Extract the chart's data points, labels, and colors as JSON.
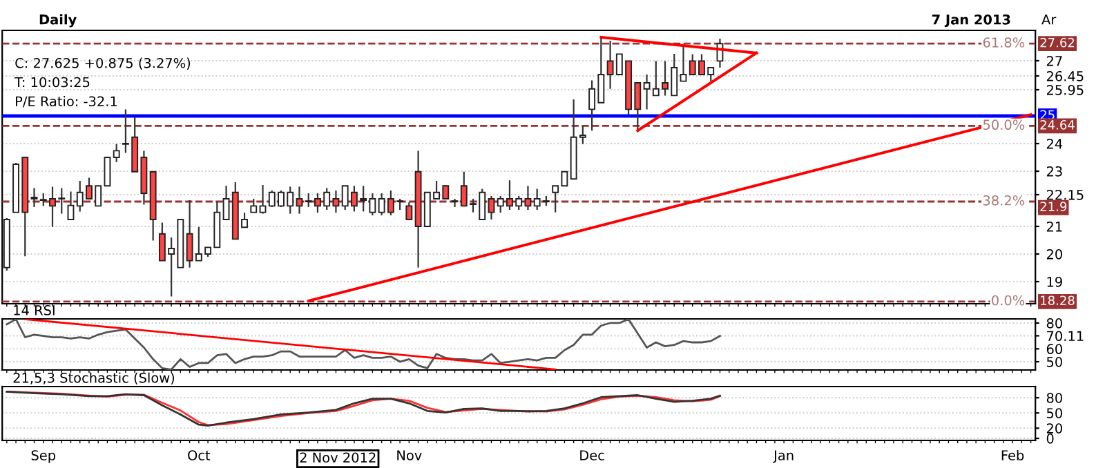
{
  "chart_data": [
    {
      "type": "candlestick",
      "title": "Daily",
      "subtitle": "7 Jan 2013",
      "ylabel": "Ar",
      "annotations": [
        "C: 27.625 +0.875 (3.27%)",
        "T: 10:03:25",
        "P/E Ratio: -32.1",
        {
          "text": "61.8%",
          "y": 27.62
        },
        {
          "text": "50.0%",
          "y": 24.64
        },
        {
          "text": "38.2%",
          "y": 21.9
        },
        {
          "text": "0.0%",
          "y": 18.28
        }
      ],
      "ohlc": [
        [
          19.51,
          21.3,
          19.4,
          21.25
        ],
        [
          21.51,
          23.3,
          21.5,
          23.25
        ],
        [
          23.5,
          23.5,
          19.92,
          21.51
        ],
        [
          22.0,
          22.39,
          21.7,
          22.05
        ],
        [
          21.95,
          22.2,
          21.74,
          21.95
        ],
        [
          22.0,
          22.44,
          20.98,
          21.74
        ],
        [
          22.0,
          22.39,
          21.46,
          22.0
        ],
        [
          21.25,
          22.26,
          21.25,
          21.76
        ],
        [
          21.74,
          22.65,
          21.54,
          22.23
        ],
        [
          22.47,
          22.76,
          22.0,
          22.0
        ],
        [
          21.74,
          22.47,
          21.74,
          22.47
        ],
        [
          22.47,
          23.5,
          22.47,
          23.5
        ],
        [
          23.5,
          23.98,
          23.33,
          23.74
        ],
        [
          23.98,
          25.24,
          23.66,
          24.0
        ],
        [
          24.23,
          24.96,
          22.98,
          22.98
        ],
        [
          23.5,
          23.74,
          21.79,
          22.2
        ],
        [
          22.98,
          22.98,
          20.49,
          21.25
        ],
        [
          20.73,
          21.14,
          19.76,
          19.76
        ],
        [
          20.0,
          20.6,
          18.46,
          20.2
        ],
        [
          19.51,
          21.25,
          19.51,
          21.25
        ],
        [
          20.73,
          21.95,
          19.51,
          19.76
        ],
        [
          19.76,
          20.98,
          19.76,
          20.0
        ],
        [
          20.0,
          20.24,
          19.9,
          20.24
        ],
        [
          20.24,
          21.9,
          20.24,
          21.51
        ],
        [
          21.25,
          22.47,
          21.25,
          22.0
        ],
        [
          22.23,
          22.6,
          20.54,
          20.54
        ],
        [
          20.97,
          21.5,
          20.97,
          21.25
        ],
        [
          21.51,
          22.0,
          21.5,
          21.74
        ],
        [
          21.51,
          22.5,
          21.46,
          21.74
        ],
        [
          21.74,
          22.3,
          21.7,
          22.23
        ],
        [
          21.74,
          22.3,
          21.7,
          22.23
        ],
        [
          21.74,
          22.44,
          21.46,
          22.23
        ],
        [
          22.0,
          22.44,
          21.46,
          21.74
        ],
        [
          21.9,
          22.2,
          21.7,
          21.92
        ],
        [
          22.0,
          22.2,
          21.5,
          21.74
        ],
        [
          21.74,
          22.39,
          21.6,
          22.23
        ],
        [
          22.0,
          22.3,
          21.5,
          21.74
        ],
        [
          21.74,
          22.47,
          21.6,
          22.47
        ],
        [
          22.23,
          22.47,
          21.54,
          21.74
        ],
        [
          21.95,
          22.47,
          21.54,
          22.0
        ],
        [
          21.51,
          22.2,
          21.4,
          22.0
        ],
        [
          21.51,
          22.2,
          21.4,
          22.0
        ],
        [
          22.0,
          22.3,
          21.4,
          21.51
        ],
        [
          21.9,
          22.0,
          21.6,
          21.92
        ],
        [
          21.74,
          21.87,
          21.25,
          21.25
        ],
        [
          22.98,
          23.74,
          19.51,
          21.0
        ],
        [
          21.0,
          22.23,
          21.0,
          22.23
        ],
        [
          22.0,
          22.65,
          22.0,
          22.23
        ],
        [
          22.47,
          22.5,
          22.0,
          22.0
        ],
        [
          21.9,
          22.0,
          21.7,
          21.92
        ],
        [
          22.47,
          22.98,
          21.74,
          21.74
        ],
        [
          21.8,
          22.0,
          21.51,
          21.8
        ],
        [
          21.25,
          22.36,
          21.25,
          22.23
        ],
        [
          22.0,
          22.1,
          21.25,
          21.51
        ],
        [
          21.74,
          22.1,
          21.5,
          22.0
        ],
        [
          22.0,
          22.67,
          21.6,
          21.74
        ],
        [
          21.74,
          22.1,
          21.6,
          22.0
        ],
        [
          22.0,
          22.47,
          21.6,
          21.74
        ],
        [
          21.74,
          22.36,
          21.6,
          22.0
        ],
        [
          21.9,
          22.1,
          21.74,
          21.9
        ],
        [
          22.23,
          22.47,
          21.51,
          22.47
        ],
        [
          22.47,
          22.98,
          22.47,
          22.98
        ],
        [
          22.72,
          25.6,
          22.72,
          24.23
        ],
        [
          24.23,
          24.63,
          23.98,
          24.3
        ],
        [
          25.24,
          26.29,
          24.47,
          25.98
        ],
        [
          25.48,
          27.85,
          25.48,
          26.5
        ],
        [
          26.99,
          27.72,
          25.98,
          26.5
        ],
        [
          26.5,
          27.24,
          26.5,
          27.24
        ],
        [
          26.99,
          26.99,
          25.04,
          25.24
        ],
        [
          26.2,
          26.2,
          24.47,
          25.24
        ],
        [
          25.98,
          26.5,
          25.24,
          26.2
        ],
        [
          25.74,
          26.99,
          25.74,
          25.98
        ],
        [
          26.2,
          26.99,
          25.74,
          25.98
        ],
        [
          25.74,
          27.25,
          25.74,
          26.75
        ],
        [
          26.26,
          27.5,
          26.26,
          26.5
        ],
        [
          26.99,
          27.24,
          26.5,
          26.5
        ],
        [
          26.99,
          27.24,
          26.5,
          26.5
        ],
        [
          26.5,
          26.75,
          26.26,
          26.75
        ],
        [
          26.99,
          27.8,
          26.75,
          27.62
        ],
        null,
        null,
        null,
        null,
        null,
        null,
        null,
        null,
        null,
        null,
        null,
        null,
        null,
        null,
        null,
        null,
        null,
        null,
        null,
        null,
        null,
        null,
        null,
        null,
        null,
        null,
        null,
        null,
        null,
        null,
        null,
        null,
        null,
        null
      ],
      "series": [
        {
          "type": "line",
          "color": "#ff0000",
          "values": [
            null,
            null,
            null,
            null,
            null,
            null,
            null,
            null,
            null,
            null,
            null,
            null,
            null,
            null,
            null,
            null,
            null,
            null,
            null,
            null,
            null,
            null,
            null,
            null,
            null,
            null,
            null,
            null,
            null,
            null,
            null,
            null,
            null,
            null,
            null,
            null,
            null,
            null,
            null,
            null,
            null,
            null,
            null,
            null,
            null,
            null,
            null,
            null,
            null,
            null,
            null,
            null,
            null,
            null,
            null,
            null,
            null,
            null,
            null,
            null,
            null,
            null,
            null,
            null,
            null,
            27.85,
            null,
            null,
            null,
            null,
            null,
            null,
            null,
            null,
            null,
            null,
            null,
            null,
            null,
            null,
            null,
            null,
            27.28,
            null,
            null,
            null,
            null,
            null,
            null,
            null,
            null,
            null,
            null,
            null,
            null,
            null,
            null,
            null,
            null,
            null,
            null,
            null,
            null,
            null,
            null,
            null,
            null,
            null,
            null,
            null,
            null,
            null,
            null
          ]
        },
        {
          "type": "line",
          "color": "#ff0000",
          "values": [
            null,
            null,
            null,
            null,
            null,
            null,
            null,
            null,
            null,
            null,
            null,
            null,
            null,
            null,
            null,
            null,
            null,
            null,
            null,
            null,
            null,
            null,
            null,
            null,
            null,
            null,
            null,
            null,
            null,
            null,
            null,
            null,
            null,
            null,
            null,
            null,
            null,
            null,
            null,
            null,
            null,
            null,
            null,
            null,
            null,
            null,
            null,
            null,
            null,
            null,
            null,
            null,
            null,
            null,
            null,
            null,
            null,
            null,
            null,
            null,
            null,
            null,
            null,
            null,
            null,
            null,
            null,
            null,
            null,
            24.47,
            null,
            null,
            null,
            null,
            null,
            null,
            null,
            null,
            null,
            null,
            null,
            null,
            27.28,
            null,
            null,
            null,
            null,
            null,
            null,
            null,
            null,
            null,
            null,
            null,
            null,
            null,
            null,
            null,
            null,
            null,
            null,
            null,
            null,
            null,
            null,
            null,
            null,
            null,
            null,
            null,
            null,
            null,
            null
          ]
        },
        {
          "type": "line",
          "color": "#ff0000",
          "values": [
            null,
            null,
            null,
            null,
            null,
            null,
            null,
            null,
            null,
            null,
            null,
            null,
            null,
            null,
            null,
            null,
            null,
            null,
            null,
            null,
            null,
            null,
            null,
            null,
            null,
            null,
            null,
            null,
            null,
            null,
            null,
            null,
            null,
            18.3,
            null,
            null,
            null,
            null,
            null,
            null,
            null,
            null,
            null,
            null,
            null,
            null,
            null,
            null,
            null,
            null,
            null,
            null,
            null,
            null,
            null,
            null,
            null,
            null,
            null,
            null,
            null,
            null,
            null,
            null,
            null,
            null,
            null,
            null,
            null,
            null,
            null,
            null,
            null,
            null,
            null,
            null,
            null,
            null,
            null,
            null,
            null,
            null,
            null,
            null,
            null,
            null,
            null,
            null,
            null,
            null,
            null,
            null,
            null,
            null,
            null,
            null,
            null,
            null,
            null,
            null,
            null,
            null,
            null,
            null,
            null,
            null,
            null,
            null,
            null,
            null,
            null,
            null,
            25.05
          ]
        }
      ],
      "ref_lines": [
        {
          "axis": "y",
          "value": 27.62,
          "label": "27.62",
          "color": "#993333",
          "line_style": "dashed"
        },
        {
          "axis": "y",
          "value": 25,
          "label": "25",
          "color": "#0000ff",
          "line_style": "solid"
        },
        {
          "axis": "y",
          "value": 24.64,
          "label": "24.64",
          "color": "#993333",
          "line_style": "dashed"
        },
        {
          "axis": "y",
          "value": 21.9,
          "label": "21.9",
          "color": "#993333",
          "line_style": "dashed"
        },
        {
          "axis": "y",
          "value": 18.28,
          "label": "18.28",
          "color": "#993333",
          "line_style": "dashed"
        }
      ],
      "ylim": [
        18.2,
        28.1
      ],
      "yticks": [
        19,
        20,
        21,
        22.15,
        23,
        24,
        25.95,
        26.45,
        27
      ],
      "grid": "y",
      "tick_labels": "y"
    },
    {
      "type": "line",
      "title": "14 RSI",
      "series": [
        {
          "color": "#555555",
          "values": [
            79,
            83,
            69,
            71,
            70,
            69,
            69,
            68,
            69,
            68,
            71,
            73,
            74,
            75,
            68,
            61,
            52,
            45,
            44,
            52,
            46,
            49,
            49,
            55,
            56,
            49,
            52,
            54,
            54,
            55,
            58,
            58,
            54,
            54,
            54,
            54,
            54,
            59,
            53,
            55,
            53,
            53,
            54,
            50,
            52,
            47,
            45,
            56,
            53,
            52,
            52,
            51,
            51,
            56,
            49,
            50,
            51,
            52,
            51,
            53,
            53,
            59,
            63,
            71,
            71,
            78,
            80,
            80,
            83,
            72,
            61,
            65,
            62,
            63,
            66,
            65,
            65,
            66,
            70,
            null,
            null,
            null,
            null,
            null,
            null,
            null,
            null,
            null,
            null,
            null,
            null,
            null,
            null,
            null,
            null,
            null,
            null,
            null,
            null,
            null,
            null,
            null,
            null,
            null,
            null,
            null,
            null,
            null,
            null,
            null,
            null,
            null,
            null
          ]
        },
        {
          "color": "#ff0000",
          "values": [
            null,
            null,
            83,
            null,
            null,
            null,
            null,
            null,
            null,
            null,
            null,
            null,
            null,
            null,
            null,
            null,
            null,
            null,
            null,
            null,
            null,
            null,
            null,
            null,
            null,
            null,
            null,
            null,
            null,
            null,
            null,
            null,
            null,
            null,
            null,
            null,
            null,
            null,
            null,
            null,
            null,
            null,
            null,
            null,
            null,
            null,
            null,
            null,
            null,
            null,
            null,
            null,
            null,
            null,
            null,
            null,
            null,
            null,
            null,
            null,
            44,
            null,
            null,
            null,
            null,
            null,
            null,
            null,
            null,
            null,
            null,
            null,
            null,
            null,
            null,
            null,
            null,
            null,
            null,
            null,
            null,
            null,
            null,
            null,
            null,
            null,
            null,
            null,
            null,
            null,
            null,
            null,
            null,
            null,
            null,
            null,
            null,
            null,
            null,
            null,
            null,
            null,
            null,
            null,
            null,
            null,
            null,
            null,
            null,
            null,
            null,
            null,
            null
          ]
        }
      ],
      "ylim": [
        43.6,
        83.2
      ],
      "yticks": [
        50,
        60,
        70.11,
        80
      ],
      "grid": "y",
      "tick_labels": "y"
    },
    {
      "type": "line",
      "title": "21,5,3 Stochastic (Slow)",
      "annotations": [
        "2 Nov 2012"
      ],
      "categories": [
        null,
        null,
        null,
        null,
        "Sep",
        null,
        null,
        null,
        null,
        null,
        null,
        null,
        null,
        null,
        null,
        null,
        null,
        null,
        null,
        null,
        null,
        "Oct",
        null,
        null,
        null,
        null,
        null,
        null,
        null,
        null,
        null,
        null,
        null,
        null,
        null,
        null,
        null,
        null,
        null,
        null,
        null,
        null,
        null,
        null,
        "Nov",
        null,
        null,
        null,
        null,
        null,
        null,
        null,
        null,
        null,
        null,
        null,
        null,
        null,
        null,
        null,
        null,
        null,
        null,
        null,
        "Dec",
        null,
        null,
        null,
        null,
        null,
        null,
        null,
        null,
        null,
        null,
        null,
        null,
        null,
        null,
        null,
        null,
        null,
        null,
        null,
        null,
        "Jan",
        null,
        null,
        null,
        null,
        null,
        null,
        null,
        null,
        null,
        null,
        null,
        null,
        null,
        null,
        null,
        null,
        null,
        null,
        null,
        null,
        null,
        null,
        null,
        null,
        "Feb",
        null,
        null
      ],
      "series": [
        {
          "color": "#ff3333",
          "values": [
            92,
            null,
            null,
            90,
            null,
            null,
            88,
            null,
            null,
            84,
            null,
            82,
            null,
            86,
            null,
            86,
            null,
            70,
            null,
            55,
            null,
            32,
            26,
            null,
            28,
            null,
            null,
            36,
            null,
            null,
            44,
            null,
            null,
            50,
            null,
            null,
            54,
            null,
            64,
            null,
            75,
            null,
            78,
            null,
            74,
            null,
            60,
            null,
            52,
            null,
            55,
            null,
            58,
            null,
            56,
            null,
            54,
            54,
            null,
            53,
            null,
            57,
            null,
            66,
            null,
            77,
            null,
            82,
            null,
            84,
            null,
            81,
            null,
            75,
            null,
            73,
            null,
            76,
            83,
            null,
            null,
            null,
            null,
            null,
            null,
            null,
            null,
            null,
            null,
            null,
            null,
            null,
            null,
            null,
            null,
            null,
            null,
            null,
            null,
            null,
            null,
            null,
            null,
            null,
            null,
            null,
            null,
            null,
            null,
            null,
            null,
            null,
            null
          ]
        },
        {
          "color": "#333333",
          "values": [
            92,
            null,
            null,
            89,
            null,
            null,
            87,
            null,
            null,
            83,
            null,
            83,
            null,
            87,
            null,
            85,
            null,
            65,
            null,
            47,
            null,
            27,
            25,
            null,
            31,
            null,
            null,
            38,
            null,
            null,
            47,
            null,
            null,
            51,
            null,
            null,
            56,
            null,
            69,
            null,
            78,
            null,
            78,
            null,
            69,
            null,
            54,
            null,
            51,
            null,
            58,
            null,
            59,
            null,
            54,
            null,
            54,
            53,
            null,
            54,
            null,
            59,
            null,
            69,
            null,
            81,
            null,
            83,
            null,
            85,
            null,
            78,
            null,
            72,
            null,
            74,
            null,
            78,
            84,
            null,
            null,
            null,
            null,
            null,
            null,
            null,
            null,
            null,
            null,
            null,
            null,
            null,
            null,
            null,
            null,
            null,
            null,
            null,
            null,
            null,
            null,
            null,
            null,
            null,
            null,
            null,
            null,
            null,
            null,
            null,
            null,
            null,
            null
          ]
        }
      ],
      "ylim": [
        -4,
        102
      ],
      "yticks": [
        0,
        20,
        50,
        80
      ],
      "grid": "y"
    }
  ]
}
